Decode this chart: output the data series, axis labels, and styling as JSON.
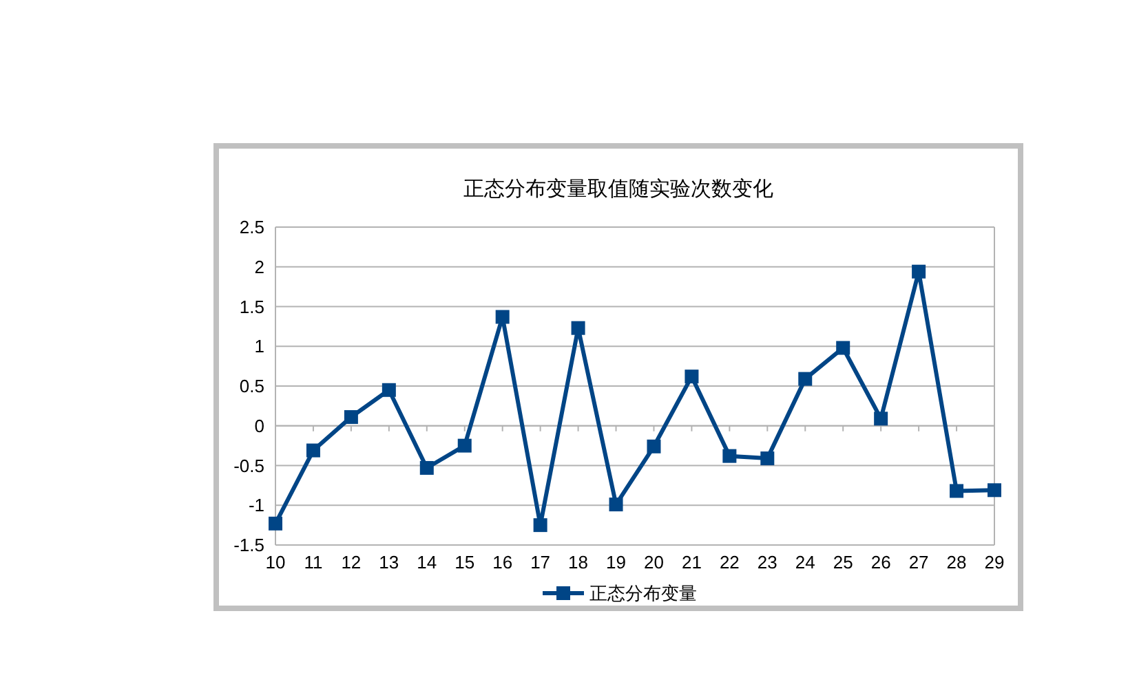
{
  "chart_data": {
    "type": "line",
    "title": "正态分布变量取值随实验次数变化",
    "categories": [
      "10",
      "11",
      "12",
      "13",
      "14",
      "15",
      "16",
      "17",
      "18",
      "19",
      "20",
      "21",
      "22",
      "23",
      "24",
      "25",
      "26",
      "27",
      "28",
      "29"
    ],
    "series": [
      {
        "name": "正态分布变量",
        "color": "#004586",
        "values": [
          -1.23,
          -0.31,
          0.11,
          0.45,
          -0.53,
          -0.25,
          1.37,
          -1.25,
          1.23,
          -0.99,
          -0.26,
          0.62,
          -0.38,
          -0.41,
          0.59,
          0.98,
          0.09,
          1.94,
          -0.82,
          -0.81
        ]
      }
    ],
    "ylim": [
      -1.5,
      2.5
    ],
    "yticks": [
      -1.5,
      -1,
      -0.5,
      0,
      0.5,
      1,
      1.5,
      2,
      2.5
    ],
    "grid": "y",
    "legend": "bottom",
    "marker": "square",
    "line_style": "solid"
  }
}
